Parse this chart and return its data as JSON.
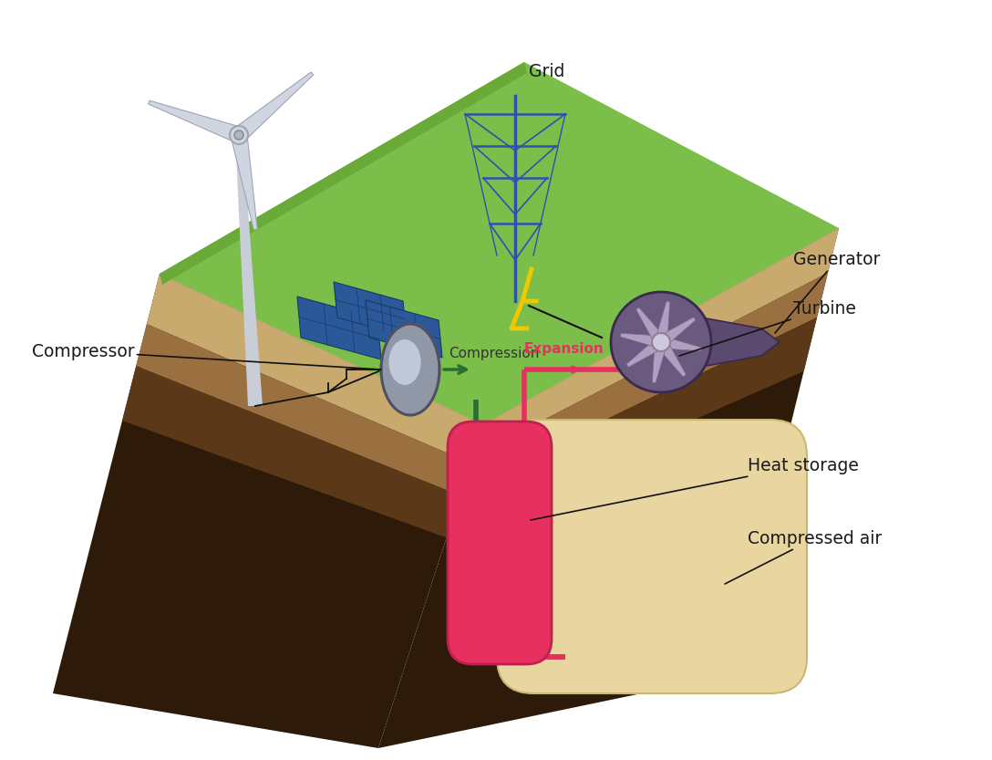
{
  "background_color": "#ffffff",
  "labels": {
    "grid": "Grid",
    "generator": "Generator",
    "turbine": "Turbine",
    "compressor": "Compressor",
    "compression": "Compression",
    "expansion": "Expansion",
    "heat_storage": "Heat storage",
    "compressed_air": "Compressed air"
  },
  "colors": {
    "grass": "#7bbf4a",
    "grass_edge": "#6aaa38",
    "soil_tan": "#c8a96e",
    "soil_brown": "#9b7040",
    "soil_dark_brown": "#5a3818",
    "soil_darkest": "#2e1a08",
    "compressed_air_fill": "#e8d5a0",
    "compressed_air_edge": "#c8b870",
    "heat_storage_fill": "#e83060",
    "heat_storage_edge": "#c02050",
    "pipe_green": "#2a6e35",
    "pipe_red": "#e83060",
    "annotation_line": "#111111",
    "expansion_label": "#e83060",
    "compression_label": "#333333",
    "solar_blue": "#2a5898",
    "solar_dark": "#1a3868",
    "grid_tower": "#3050b0",
    "wind_blade": "#d8dde8",
    "wind_hub": "#c8cdd8",
    "turbine_body": "#5a4a70",
    "turbine_face": "#6a5a80",
    "turbine_blade": "#b0a0c0",
    "compressor_body": "#9098a8",
    "compressor_light": "#c0c8d8",
    "yellow": "#f0c800"
  }
}
